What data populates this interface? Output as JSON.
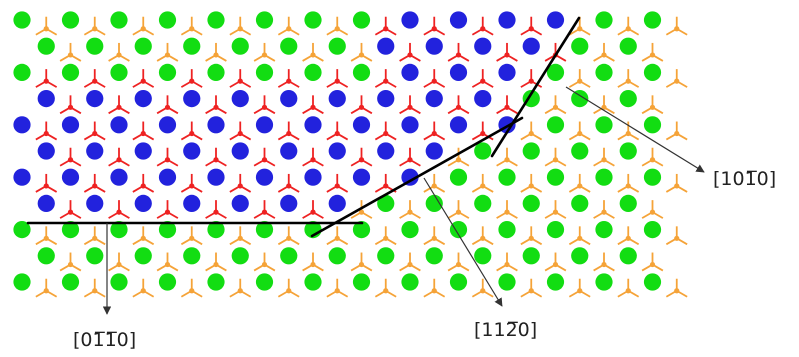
{
  "labels": {
    "dir_01": "[01̅1̅0]",
    "dir_11": "[112̅0]",
    "dir_10": "[101̅0]"
  },
  "colors": {
    "green_atom": "#12dd12",
    "blue_atom": "#2222dd",
    "bond_orange": "#f5a338",
    "bond_red": "#ee2222",
    "boundary_line": "#000000",
    "leader_line": "#333333"
  },
  "icons": [
    "boundary-line",
    "arrow-leader"
  ]
}
